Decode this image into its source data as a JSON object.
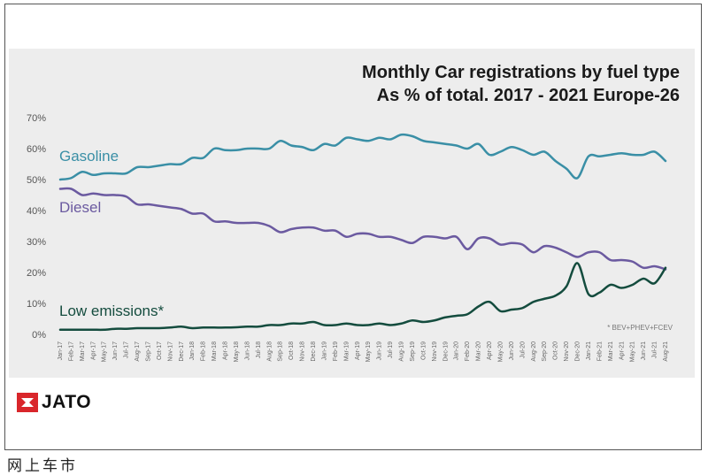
{
  "watermark": "网上车市",
  "logo": {
    "text": "JATO",
    "color": "#d9262b"
  },
  "chart_data": {
    "type": "line",
    "title": "Monthly Car registrations by fuel type",
    "subtitle": "As % of total. 2017 - 2021 Europe-26",
    "footnote": "* BEV+PHEV+FCEV",
    "ylim": [
      0,
      70
    ],
    "yticks": [
      "70%",
      "60%",
      "50%",
      "40%",
      "30%",
      "20%",
      "10%",
      "0%"
    ],
    "ytick_values": [
      70,
      60,
      50,
      40,
      30,
      20,
      10,
      0
    ],
    "grid": false,
    "categories": [
      "Jan-17",
      "Feb-17",
      "Mar-17",
      "Apr-17",
      "May-17",
      "Jun-17",
      "Jul-17",
      "Aug-17",
      "Sep-17",
      "Oct-17",
      "Nov-17",
      "Dec-17",
      "Jan-18",
      "Feb-18",
      "Mar-18",
      "Apr-18",
      "May-18",
      "Jun-18",
      "Jul-18",
      "Aug-18",
      "Sep-18",
      "Oct-18",
      "Nov-18",
      "Dec-18",
      "Jan-19",
      "Feb-19",
      "Mar-19",
      "Apr-19",
      "May-19",
      "Jun-19",
      "Jul-19",
      "Aug-19",
      "Sep-19",
      "Oct-19",
      "Nov-19",
      "Dec-19",
      "Jan-20",
      "Feb-20",
      "Mar-20",
      "Apr-20",
      "May-20",
      "Jun-20",
      "Jul-20",
      "Aug-20",
      "Sep-20",
      "Oct-20",
      "Nov-20",
      "Dec-20",
      "Jan-21",
      "Feb-21",
      "Mar-21",
      "Apr-21",
      "May-21",
      "Jun-21",
      "Jul-21",
      "Aug-21"
    ],
    "series": [
      {
        "name": "Gasoline",
        "color": "#3a8fa6",
        "values": [
          50,
          50.5,
          52.5,
          51.5,
          52,
          52,
          52,
          54,
          54,
          54.5,
          55,
          55,
          57,
          57,
          60,
          59.5,
          59.5,
          60,
          60,
          60,
          62.5,
          61,
          60.5,
          59.5,
          61.5,
          61,
          63.5,
          63,
          62.5,
          63.5,
          63,
          64.5,
          64,
          62.5,
          62,
          61.5,
          61,
          60,
          61.5,
          58,
          59,
          60.5,
          59.5,
          58,
          59,
          56,
          53.5,
          50.5,
          57.5,
          57.5,
          58,
          58.5,
          58,
          58,
          59,
          56
        ]
      },
      {
        "name": "Diesel",
        "color": "#6b5aa0",
        "values": [
          47,
          47,
          45,
          45.5,
          45,
          45,
          44.5,
          42,
          42,
          41.5,
          41,
          40.5,
          39,
          39,
          36.5,
          36.5,
          36,
          36,
          36,
          35,
          33,
          34,
          34.5,
          34.5,
          33.5,
          33.5,
          31.5,
          32.5,
          32.5,
          31.5,
          31.5,
          30.5,
          29.5,
          31.5,
          31.5,
          31,
          31.5,
          27.5,
          31,
          31,
          29,
          29.5,
          29,
          26.5,
          28.5,
          28,
          26.5,
          25,
          26.5,
          26.5,
          24,
          24,
          23.5,
          21.5,
          22,
          21
        ]
      },
      {
        "name": "Low emissions*",
        "color": "#144c3e",
        "values": [
          1.5,
          1.5,
          1.5,
          1.5,
          1.5,
          1.8,
          1.8,
          2,
          2,
          2,
          2.2,
          2.5,
          2,
          2.2,
          2.2,
          2.2,
          2.3,
          2.5,
          2.5,
          3,
          3,
          3.5,
          3.5,
          4,
          3,
          3,
          3.5,
          3,
          3,
          3.5,
          3,
          3.5,
          4.5,
          4,
          4.5,
          5.5,
          6,
          6.5,
          9,
          10.5,
          7.5,
          8,
          8.5,
          10.5,
          11.5,
          12.5,
          15.5,
          23,
          13,
          13.5,
          16,
          15,
          16,
          18,
          16.5,
          21.5
        ]
      }
    ]
  }
}
